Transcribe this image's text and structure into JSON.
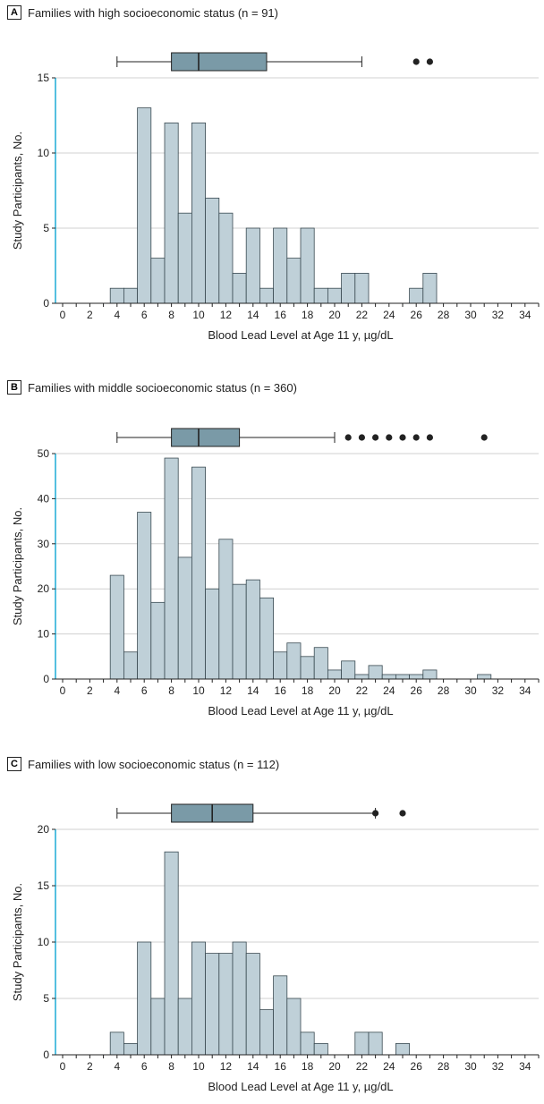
{
  "chart_data": [
    {
      "type": "bar",
      "panel": "A",
      "title": "Families with high socioeconomic status (n = 91)",
      "xlabel": "Blood Lead Level at Age 11 y, µg/dL",
      "ylabel": "Study Participants, No.",
      "xlim": [
        0,
        35
      ],
      "ylim": [
        0,
        15
      ],
      "yticks": [
        0,
        5,
        10,
        15
      ],
      "xticks": [
        0,
        2,
        4,
        6,
        8,
        10,
        12,
        14,
        16,
        18,
        20,
        22,
        24,
        26,
        28,
        30,
        32,
        34
      ],
      "bin_width": 1,
      "bins": [
        4,
        5,
        6,
        7,
        8,
        9,
        10,
        11,
        12,
        13,
        14,
        15,
        16,
        17,
        18,
        19,
        20,
        21,
        22,
        26,
        27
      ],
      "values": [
        1,
        1,
        13,
        3,
        12,
        6,
        12,
        7,
        6,
        2,
        5,
        1,
        5,
        3,
        5,
        1,
        1,
        2,
        2,
        1,
        2
      ],
      "boxplot": {
        "whisker_low": 4,
        "q1": 8,
        "median": 10,
        "q3": 15,
        "whisker_high": 22,
        "outliers": [
          26,
          27
        ]
      }
    },
    {
      "type": "bar",
      "panel": "B",
      "title": "Families with middle socioeconomic status (n = 360)",
      "xlabel": "Blood Lead Level at Age 11 y, µg/dL",
      "ylabel": "Study Participants, No.",
      "xlim": [
        0,
        35
      ],
      "ylim": [
        0,
        50
      ],
      "yticks": [
        0,
        10,
        20,
        30,
        40,
        50
      ],
      "xticks": [
        0,
        2,
        4,
        6,
        8,
        10,
        12,
        14,
        16,
        18,
        20,
        22,
        24,
        26,
        28,
        30,
        32,
        34
      ],
      "bin_width": 1,
      "bins": [
        4,
        5,
        6,
        7,
        8,
        9,
        10,
        11,
        12,
        13,
        14,
        15,
        16,
        17,
        18,
        19,
        20,
        21,
        22,
        23,
        24,
        25,
        26,
        27,
        31
      ],
      "values": [
        23,
        6,
        37,
        17,
        49,
        27,
        47,
        20,
        31,
        21,
        22,
        18,
        6,
        8,
        5,
        7,
        2,
        4,
        1,
        3,
        1,
        1,
        1,
        2,
        1
      ],
      "boxplot": {
        "whisker_low": 4,
        "q1": 8,
        "median": 10,
        "q3": 13,
        "whisker_high": 20,
        "outliers": [
          21,
          22,
          23,
          24,
          25,
          26,
          27,
          31
        ]
      }
    },
    {
      "type": "bar",
      "panel": "C",
      "title": "Families with low socioeconomic status (n = 112)",
      "xlabel": "Blood Lead Level at Age 11 y, µg/dL",
      "ylabel": "Study Participants, No.",
      "xlim": [
        0,
        35
      ],
      "ylim": [
        0,
        20
      ],
      "yticks": [
        0,
        5,
        10,
        15,
        20
      ],
      "xticks": [
        0,
        2,
        4,
        6,
        8,
        10,
        12,
        14,
        16,
        18,
        20,
        22,
        24,
        26,
        28,
        30,
        32,
        34
      ],
      "bin_width": 1,
      "bins": [
        4,
        5,
        6,
        7,
        8,
        9,
        10,
        11,
        12,
        13,
        14,
        15,
        16,
        17,
        18,
        19,
        22,
        23,
        25
      ],
      "values": [
        2,
        1,
        10,
        5,
        18,
        5,
        10,
        9,
        9,
        10,
        9,
        4,
        7,
        5,
        2,
        1,
        2,
        2,
        1
      ],
      "boxplot": {
        "whisker_low": 4,
        "q1": 8,
        "median": 11,
        "q3": 14,
        "whisker_high": 23,
        "outliers": [
          23,
          25
        ]
      }
    }
  ],
  "colors": {
    "bar_fill": "#bfd0d8",
    "bar_stroke": "#3a4a52",
    "box_fill": "#7a9aa7",
    "grid": "#d0d0d0",
    "axis": "#222222",
    "y_axis_accent": "#2ab0d8"
  }
}
